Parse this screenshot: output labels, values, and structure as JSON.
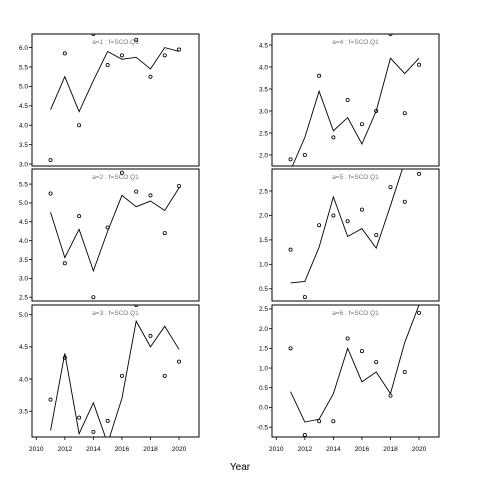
{
  "chart_data": {
    "type": "scatter",
    "xlabel": "Year",
    "x_ticks": [
      2010,
      2012,
      2014,
      2016,
      2018,
      2020
    ],
    "panels": [
      {
        "strip": "a=1 : f=SCO.Q1",
        "xlim": [
          2009.7,
          2021.4
        ],
        "ylim": [
          2.95,
          6.35
        ],
        "y_ticks": [
          3.0,
          3.5,
          4.0,
          4.5,
          5.0,
          5.5,
          6.0
        ],
        "series": [
          {
            "kind": "line",
            "x": [
              2011,
              2012,
              2013,
              2014,
              2015,
              2016,
              2017,
              2018,
              2019,
              2020
            ],
            "y": [
              4.4,
              5.25,
              4.35,
              5.15,
              5.9,
              5.7,
              5.75,
              5.45,
              6.0,
              5.9
            ]
          },
          {
            "kind": "points",
            "x": [
              2011,
              2012,
              2013,
              2014,
              2015,
              2016,
              2017,
              2018,
              2019,
              2020
            ],
            "y": [
              3.1,
              5.85,
              4.0,
              6.35,
              5.55,
              5.8,
              6.2,
              5.25,
              5.8,
              5.95
            ]
          }
        ]
      },
      {
        "strip": "a=4 : f=SCO.Q1",
        "xlim": [
          2009.7,
          2021.4
        ],
        "ylim": [
          1.75,
          4.75
        ],
        "y_ticks": [
          2.0,
          2.5,
          3.0,
          3.5,
          4.0,
          4.5
        ],
        "series": [
          {
            "kind": "line",
            "x": [
              2011,
              2012,
              2013,
              2014,
              2015,
              2016,
              2017,
              2018,
              2019,
              2020
            ],
            "y": [
              1.65,
              2.4,
              3.45,
              2.55,
              2.85,
              2.25,
              3.0,
              4.2,
              3.85,
              4.2
            ]
          },
          {
            "kind": "points",
            "x": [
              2011,
              2012,
              2013,
              2014,
              2015,
              2016,
              2017,
              2018,
              2019,
              2020
            ],
            "y": [
              1.9,
              2.0,
              3.8,
              2.4,
              3.25,
              2.7,
              3.0,
              4.75,
              2.95,
              4.05
            ]
          }
        ]
      },
      {
        "strip": "a=2 : f=SCO.Q1",
        "xlim": [
          2009.7,
          2021.4
        ],
        "ylim": [
          2.4,
          5.9
        ],
        "y_ticks": [
          2.5,
          3.0,
          3.5,
          4.0,
          4.5,
          5.0,
          5.5
        ],
        "series": [
          {
            "kind": "line",
            "x": [
              2011,
              2012,
              2013,
              2014,
              2015,
              2016,
              2017,
              2018,
              2019,
              2020
            ],
            "y": [
              4.75,
              3.55,
              4.3,
              3.2,
              4.25,
              5.2,
              4.9,
              5.05,
              4.8,
              5.4
            ]
          },
          {
            "kind": "points",
            "x": [
              2011,
              2012,
              2013,
              2014,
              2015,
              2016,
              2017,
              2018,
              2019,
              2020
            ],
            "y": [
              5.25,
              3.4,
              4.65,
              2.5,
              4.35,
              5.8,
              5.3,
              5.2,
              4.2,
              5.45
            ]
          }
        ]
      },
      {
        "strip": "a=5 : f=SCO.Q1",
        "xlim": [
          2009.7,
          2021.4
        ],
        "ylim": [
          0.25,
          2.95
        ],
        "y_ticks": [
          0.5,
          1.0,
          1.5,
          2.0,
          2.5
        ],
        "series": [
          {
            "kind": "line",
            "x": [
              2011,
              2012,
              2013,
              2014,
              2015,
              2016,
              2017,
              2018,
              2019,
              2020
            ],
            "y": [
              0.62,
              0.65,
              1.35,
              2.38,
              1.57,
              1.73,
              1.33,
              2.2,
              3.1,
              3.7
            ]
          },
          {
            "kind": "points",
            "x": [
              2011,
              2012,
              2013,
              2014,
              2015,
              2016,
              2017,
              2018,
              2019,
              2020
            ],
            "y": [
              1.3,
              0.33,
              1.8,
              2.0,
              1.88,
              2.12,
              1.6,
              2.58,
              2.28,
              2.85
            ]
          }
        ]
      },
      {
        "strip": "a=3 : f=SCO.Q1",
        "xlim": [
          2009.7,
          2021.4
        ],
        "ylim": [
          3.1,
          5.15
        ],
        "y_ticks": [
          3.5,
          4.0,
          4.5,
          5.0
        ],
        "series": [
          {
            "kind": "line",
            "x": [
              2011,
              2012,
              2013,
              2014,
              2015,
              2016,
              2017,
              2018,
              2019,
              2020
            ],
            "y": [
              3.2,
              4.4,
              3.15,
              3.63,
              3.0,
              3.7,
              4.9,
              4.5,
              4.82,
              4.46
            ]
          },
          {
            "kind": "points",
            "x": [
              2011,
              2012,
              2013,
              2014,
              2015,
              2016,
              2017,
              2018,
              2019,
              2020
            ],
            "y": [
              3.68,
              4.33,
              3.4,
              3.18,
              3.35,
              4.05,
              5.15,
              4.67,
              4.05,
              4.27
            ]
          }
        ]
      },
      {
        "strip": "a=6 : f=SCO.Q1",
        "xlim": [
          2009.7,
          2021.4
        ],
        "ylim": [
          -0.75,
          2.6
        ],
        "y_ticks": [
          -0.5,
          0.0,
          0.5,
          1.0,
          1.5,
          2.0,
          2.5
        ],
        "series": [
          {
            "kind": "line",
            "x": [
              2011,
              2012,
              2013,
              2014,
              2015,
              2016,
              2017,
              2018,
              2019,
              2020
            ],
            "y": [
              0.4,
              -0.37,
              -0.3,
              0.35,
              1.5,
              0.65,
              0.9,
              0.35,
              1.65,
              2.6
            ]
          },
          {
            "kind": "points",
            "x": [
              2011,
              2012,
              2013,
              2014,
              2015,
              2016,
              2017,
              2018,
              2019,
              2020
            ],
            "y": [
              1.5,
              -0.7,
              -0.35,
              -0.35,
              1.75,
              1.43,
              1.15,
              0.3,
              0.9,
              2.4
            ]
          }
        ]
      }
    ]
  }
}
